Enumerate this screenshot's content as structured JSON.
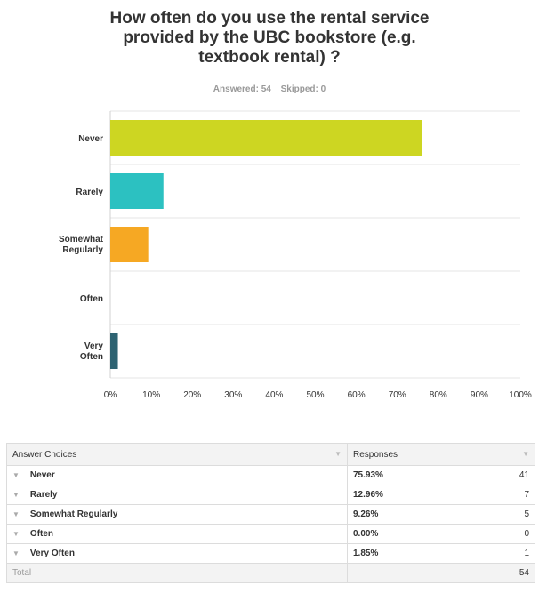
{
  "title_lines": [
    "How often do you use the rental service",
    "provided by the UBC bookstore (e.g.",
    "textbook rental) ?"
  ],
  "answered_label": "Answered: 54",
  "skipped_label": "Skipped: 0",
  "chart_data": {
    "type": "bar",
    "orientation": "horizontal",
    "categories": [
      "Never",
      "Rarely",
      "Somewhat Regularly",
      "Often",
      "Very Often"
    ],
    "values": [
      75.93,
      12.96,
      9.26,
      0.0,
      1.85
    ],
    "colors": [
      "#cdd622",
      "#2cc1c1",
      "#f6a823",
      "#7a4f9a",
      "#2e6372"
    ],
    "xlim": [
      0,
      100
    ],
    "x_tick_labels": [
      "0%",
      "10%",
      "20%",
      "30%",
      "40%",
      "50%",
      "60%",
      "70%",
      "80%",
      "90%",
      "100%"
    ],
    "grid": true
  },
  "table": {
    "headers": [
      "Answer Choices",
      "Responses"
    ],
    "rows": [
      {
        "choice": "Never",
        "percent": "75.93%",
        "count": "41"
      },
      {
        "choice": "Rarely",
        "percent": "12.96%",
        "count": "7"
      },
      {
        "choice": "Somewhat Regularly",
        "percent": "9.26%",
        "count": "5"
      },
      {
        "choice": "Often",
        "percent": "0.00%",
        "count": "0"
      },
      {
        "choice": "Very Often",
        "percent": "1.85%",
        "count": "1"
      }
    ],
    "total_label": "Total",
    "total_count": "54"
  }
}
